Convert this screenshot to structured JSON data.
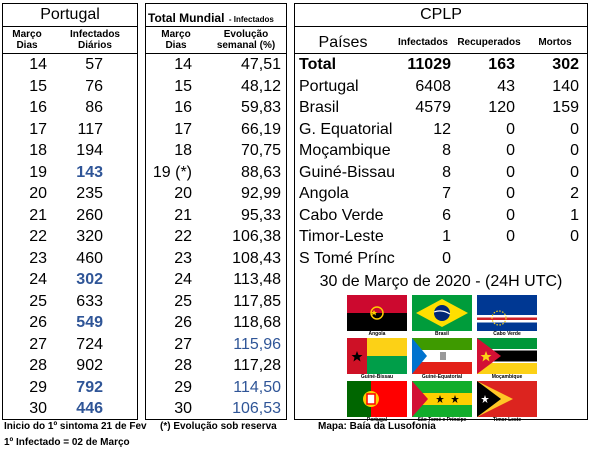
{
  "portugal": {
    "title": "Portugal",
    "col1": "Março\nDias",
    "col2": "Infectados\nDiários",
    "rows": [
      {
        "day": "14",
        "value": "57",
        "hl": false
      },
      {
        "day": "15",
        "value": "76",
        "hl": false
      },
      {
        "day": "16",
        "value": "86",
        "hl": false
      },
      {
        "day": "17",
        "value": "117",
        "hl": false
      },
      {
        "day": "18",
        "value": "194",
        "hl": false
      },
      {
        "day": "19",
        "value": "143",
        "hl": true
      },
      {
        "day": "20",
        "value": "235",
        "hl": false
      },
      {
        "day": "21",
        "value": "260",
        "hl": false
      },
      {
        "day": "22",
        "value": "320",
        "hl": false
      },
      {
        "day": "23",
        "value": "460",
        "hl": false
      },
      {
        "day": "24",
        "value": "302",
        "hl": true
      },
      {
        "day": "25",
        "value": "633",
        "hl": false
      },
      {
        "day": "26",
        "value": "549",
        "hl": true
      },
      {
        "day": "27",
        "value": "724",
        "hl": false
      },
      {
        "day": "28",
        "value": "902",
        "hl": false
      },
      {
        "day": "29",
        "value": "792",
        "hl": true
      },
      {
        "day": "30",
        "value": "446",
        "hl": true
      }
    ]
  },
  "mundial": {
    "title": "Total Mundial",
    "subtitle": "- Infectados",
    "col1": "Março\nDias",
    "col2": "Evolução\nsemanal (%)",
    "rows": [
      {
        "day": "14",
        "value": "47,51",
        "blue": false
      },
      {
        "day": "15",
        "value": "48,12",
        "blue": false
      },
      {
        "day": "16",
        "value": "59,83",
        "blue": false
      },
      {
        "day": "17",
        "value": "66,19",
        "blue": false
      },
      {
        "day": "18",
        "value": "70,75",
        "blue": false
      },
      {
        "day": "19 (*)",
        "value": "88,63",
        "blue": false
      },
      {
        "day": "20",
        "value": "92,99",
        "blue": false
      },
      {
        "day": "21",
        "value": "95,33",
        "blue": false
      },
      {
        "day": "22",
        "value": "106,38",
        "blue": false
      },
      {
        "day": "23",
        "value": "108,43",
        "blue": false
      },
      {
        "day": "24",
        "value": "113,48",
        "blue": false
      },
      {
        "day": "25",
        "value": "117,85",
        "blue": false
      },
      {
        "day": "26",
        "value": "118,68",
        "blue": false
      },
      {
        "day": "27",
        "value": "115,96",
        "blue": true
      },
      {
        "day": "28",
        "value": "117,28",
        "blue": false
      },
      {
        "day": "29",
        "value": "114,50",
        "blue": true
      },
      {
        "day": "30",
        "value": "106,53",
        "blue": true
      }
    ]
  },
  "cplp": {
    "title": "CPLP",
    "headers": {
      "country": "Países",
      "infected": "Infectados",
      "recovered": "Recuperados",
      "deaths": "Mortos"
    },
    "rows": [
      {
        "country": "Total",
        "infected": "11029",
        "recovered": "163",
        "deaths": "302",
        "bold": true
      },
      {
        "country": "Portugal",
        "infected": "6408",
        "recovered": "43",
        "deaths": "140",
        "bold": false
      },
      {
        "country": "Brasil",
        "infected": "4579",
        "recovered": "120",
        "deaths": "159",
        "bold": false
      },
      {
        "country": "G. Equatorial",
        "infected": "12",
        "recovered": "0",
        "deaths": "0",
        "bold": false
      },
      {
        "country": "Moçambique",
        "infected": "8",
        "recovered": "0",
        "deaths": "0",
        "bold": false
      },
      {
        "country": "Guiné-Bissau",
        "infected": "8",
        "recovered": "0",
        "deaths": "0",
        "bold": false
      },
      {
        "country": "Angola",
        "infected": "7",
        "recovered": "0",
        "deaths": "2",
        "bold": false
      },
      {
        "country": "Cabo Verde",
        "infected": "6",
        "recovered": "0",
        "deaths": "1",
        "bold": false
      },
      {
        "country": "Timor-Leste",
        "infected": "1",
        "recovered": "0",
        "deaths": "0",
        "bold": false
      },
      {
        "country": "S Tomé Prínc",
        "infected": "0",
        "recovered": "",
        "deaths": "",
        "bold": false
      }
    ],
    "date_line": "30 de Março de 2020 - (24H UTC)",
    "flags": [
      {
        "name": "Angola",
        "icon": "angola-flag-icon"
      },
      {
        "name": "Brasil",
        "icon": "brasil-flag-icon"
      },
      {
        "name": "Cabo Verde",
        "icon": "cabo-verde-flag-icon"
      },
      {
        "name": "Guiné-Bissau",
        "icon": "guine-bissau-flag-icon"
      },
      {
        "name": "Guiné-Equatorial",
        "icon": "guine-equatorial-flag-icon"
      },
      {
        "name": "Moçambique",
        "icon": "mocambique-flag-icon"
      },
      {
        "name": "Portugal",
        "icon": "portugal-flag-icon"
      },
      {
        "name": "São Tomé e Príncipe",
        "icon": "sao-tome-flag-icon"
      },
      {
        "name": "Timor Leste",
        "icon": "timor-leste-flag-icon"
      }
    ]
  },
  "footer": {
    "line1": "Inicio do 1º sintoma 21 de Fev",
    "line2": "1º Infectado = 02 de Março",
    "note": "(*) Evolução sob reserva",
    "map": "Mapa: Baía da Lusofonia"
  },
  "colors": {
    "highlight": "#2f5597"
  }
}
